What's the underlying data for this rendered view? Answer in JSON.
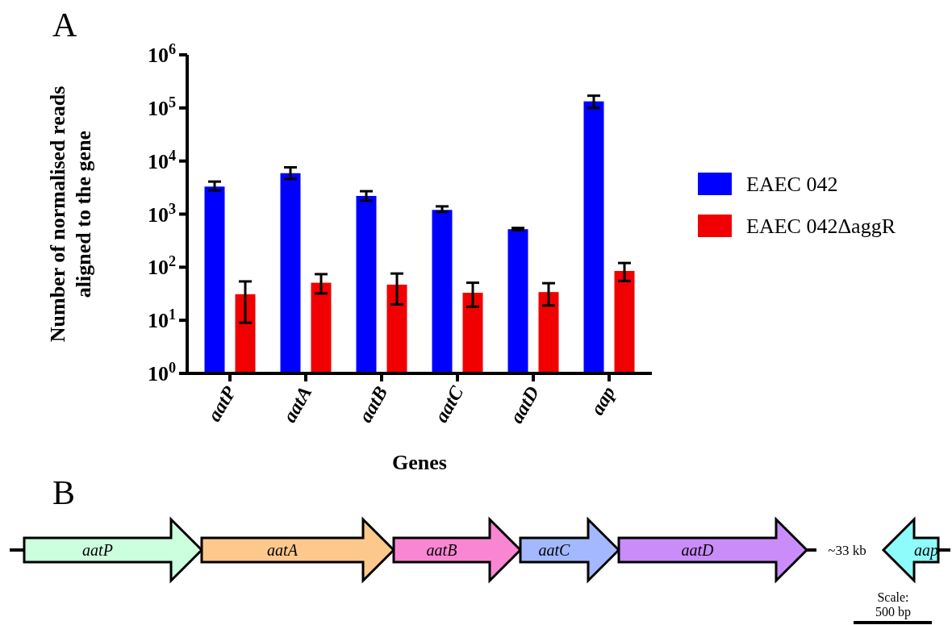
{
  "chart_data": [
    {
      "type": "bar",
      "title": "A",
      "xlabel": "Genes",
      "ylabel": "Number of normalised reads aligned to the gene",
      "categories": [
        "aatP",
        "aatA",
        "aatB",
        "aatC",
        "aatD",
        "aap"
      ],
      "log": true,
      "ylim": [
        1,
        1000000
      ],
      "yticks": [
        {
          "value": 1,
          "label": "10$^{0}$"
        },
        {
          "value": 10,
          "label": "10$^{1}$"
        },
        {
          "value": 100,
          "label": "10$^{2}$"
        },
        {
          "value": 1000,
          "label": "10$^{3}$"
        },
        {
          "value": 10000,
          "label": "10$^{4}$"
        },
        {
          "value": 100000,
          "label": "10$^{5}$"
        },
        {
          "value": 1000000,
          "label": "10$^{6}$"
        }
      ],
      "legend": "right",
      "grid": false,
      "series": [
        {
          "name": "EAEC 042",
          "color": "#0000ff",
          "values": [
            3300,
            5900,
            2200,
            1200,
            520,
            133000
          ],
          "errors": [
            [
              2800,
              4100
            ],
            [
              4600,
              7600
            ],
            [
              1800,
              2700
            ],
            [
              1100,
              1400
            ],
            [
              500,
              550
            ],
            [
              100000,
              170000
            ]
          ]
        },
        {
          "name": "EAEC 042ΔaggR",
          "color": "#f00000",
          "values": [
            31,
            51,
            47,
            33,
            34,
            85
          ],
          "errors": [
            [
              9,
              54
            ],
            [
              32,
              74
            ],
            [
              20,
              76
            ],
            [
              18,
              51
            ],
            [
              19,
              50
            ],
            [
              55,
              120
            ]
          ]
        }
      ]
    },
    {
      "type": "other",
      "title": "B",
      "annotations": [
        "aatP",
        "aatA",
        "aatB",
        "aatC",
        "aatD",
        "aap",
        "~33 kb",
        "Scale:",
        "500 bp"
      ]
    }
  ]
}
